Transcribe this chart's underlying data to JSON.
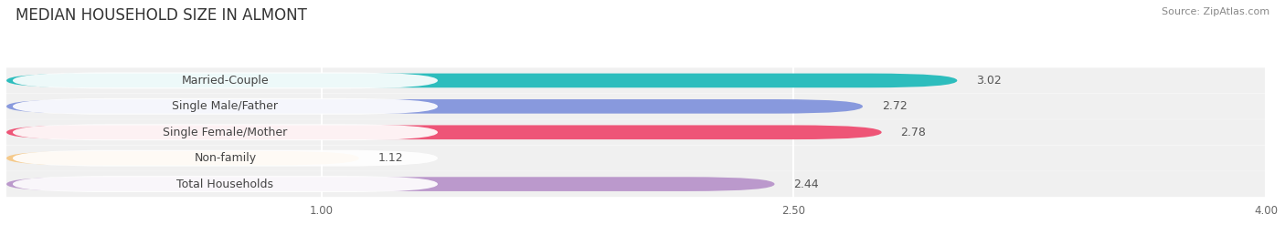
{
  "title": "MEDIAN HOUSEHOLD SIZE IN ALMONT",
  "source": "Source: ZipAtlas.com",
  "categories": [
    "Married-Couple",
    "Single Male/Father",
    "Single Female/Mother",
    "Non-family",
    "Total Households"
  ],
  "values": [
    3.02,
    2.72,
    2.78,
    1.12,
    2.44
  ],
  "bar_colors": [
    "#2dbdbd",
    "#8899dd",
    "#ee5577",
    "#f5c98a",
    "#bb99cc"
  ],
  "label_text_colors": [
    "#555555",
    "#555555",
    "#555555",
    "#888855",
    "#555555"
  ],
  "xlim_min": 0.0,
  "xlim_max": 4.0,
  "xticks": [
    1.0,
    2.5,
    4.0
  ],
  "background_color": "#ffffff",
  "row_bg_color": "#f0f0f0",
  "title_fontsize": 12,
  "label_fontsize": 9,
  "value_fontsize": 9,
  "source_fontsize": 8
}
